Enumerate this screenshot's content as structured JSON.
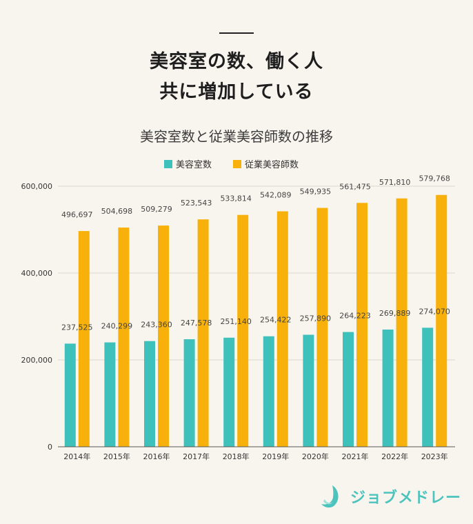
{
  "header": {
    "line1": "美容室の数、働く人",
    "line2": "共に増加している"
  },
  "colors": {
    "series_teal": "#3ec1bb",
    "series_orange": "#f7b10a",
    "brand": "#4cc4bd"
  },
  "chart_data": {
    "type": "bar",
    "title": "美容室数と従業美容師数の推移",
    "categories": [
      "2014年",
      "2015年",
      "2016年",
      "2017年",
      "2018年",
      "2019年",
      "2020年",
      "2021年",
      "2022年",
      "2023年"
    ],
    "series": [
      {
        "name": "美容室数",
        "color": "#3ec1bb",
        "values": [
          237525,
          240299,
          243360,
          247578,
          251140,
          254422,
          257890,
          264223,
          269889,
          274070
        ],
        "labels": [
          "237,525",
          "240,299",
          "243,360",
          "247,578",
          "251,140",
          "254,422",
          "257,890",
          "264,223",
          "269,889",
          "274,070"
        ]
      },
      {
        "name": "従業美容師数",
        "color": "#f7b10a",
        "values": [
          496697,
          504698,
          509279,
          523543,
          533814,
          542089,
          549935,
          561475,
          571810,
          579768
        ],
        "labels": [
          "496,697",
          "504,698",
          "509,279",
          "523,543",
          "533,814",
          "542,089",
          "549,935",
          "561,475",
          "571,810",
          "579,768"
        ]
      }
    ],
    "yticks": [
      0,
      200000,
      400000,
      600000
    ],
    "ytick_labels": [
      "0",
      "200,000",
      "400,000",
      "600,000"
    ],
    "ylim": [
      0,
      600000
    ],
    "grid": true,
    "legend": "top-center"
  },
  "brand": {
    "name": "ジョブメドレー",
    "logo_icon": "jobmedley-logo-icon"
  }
}
